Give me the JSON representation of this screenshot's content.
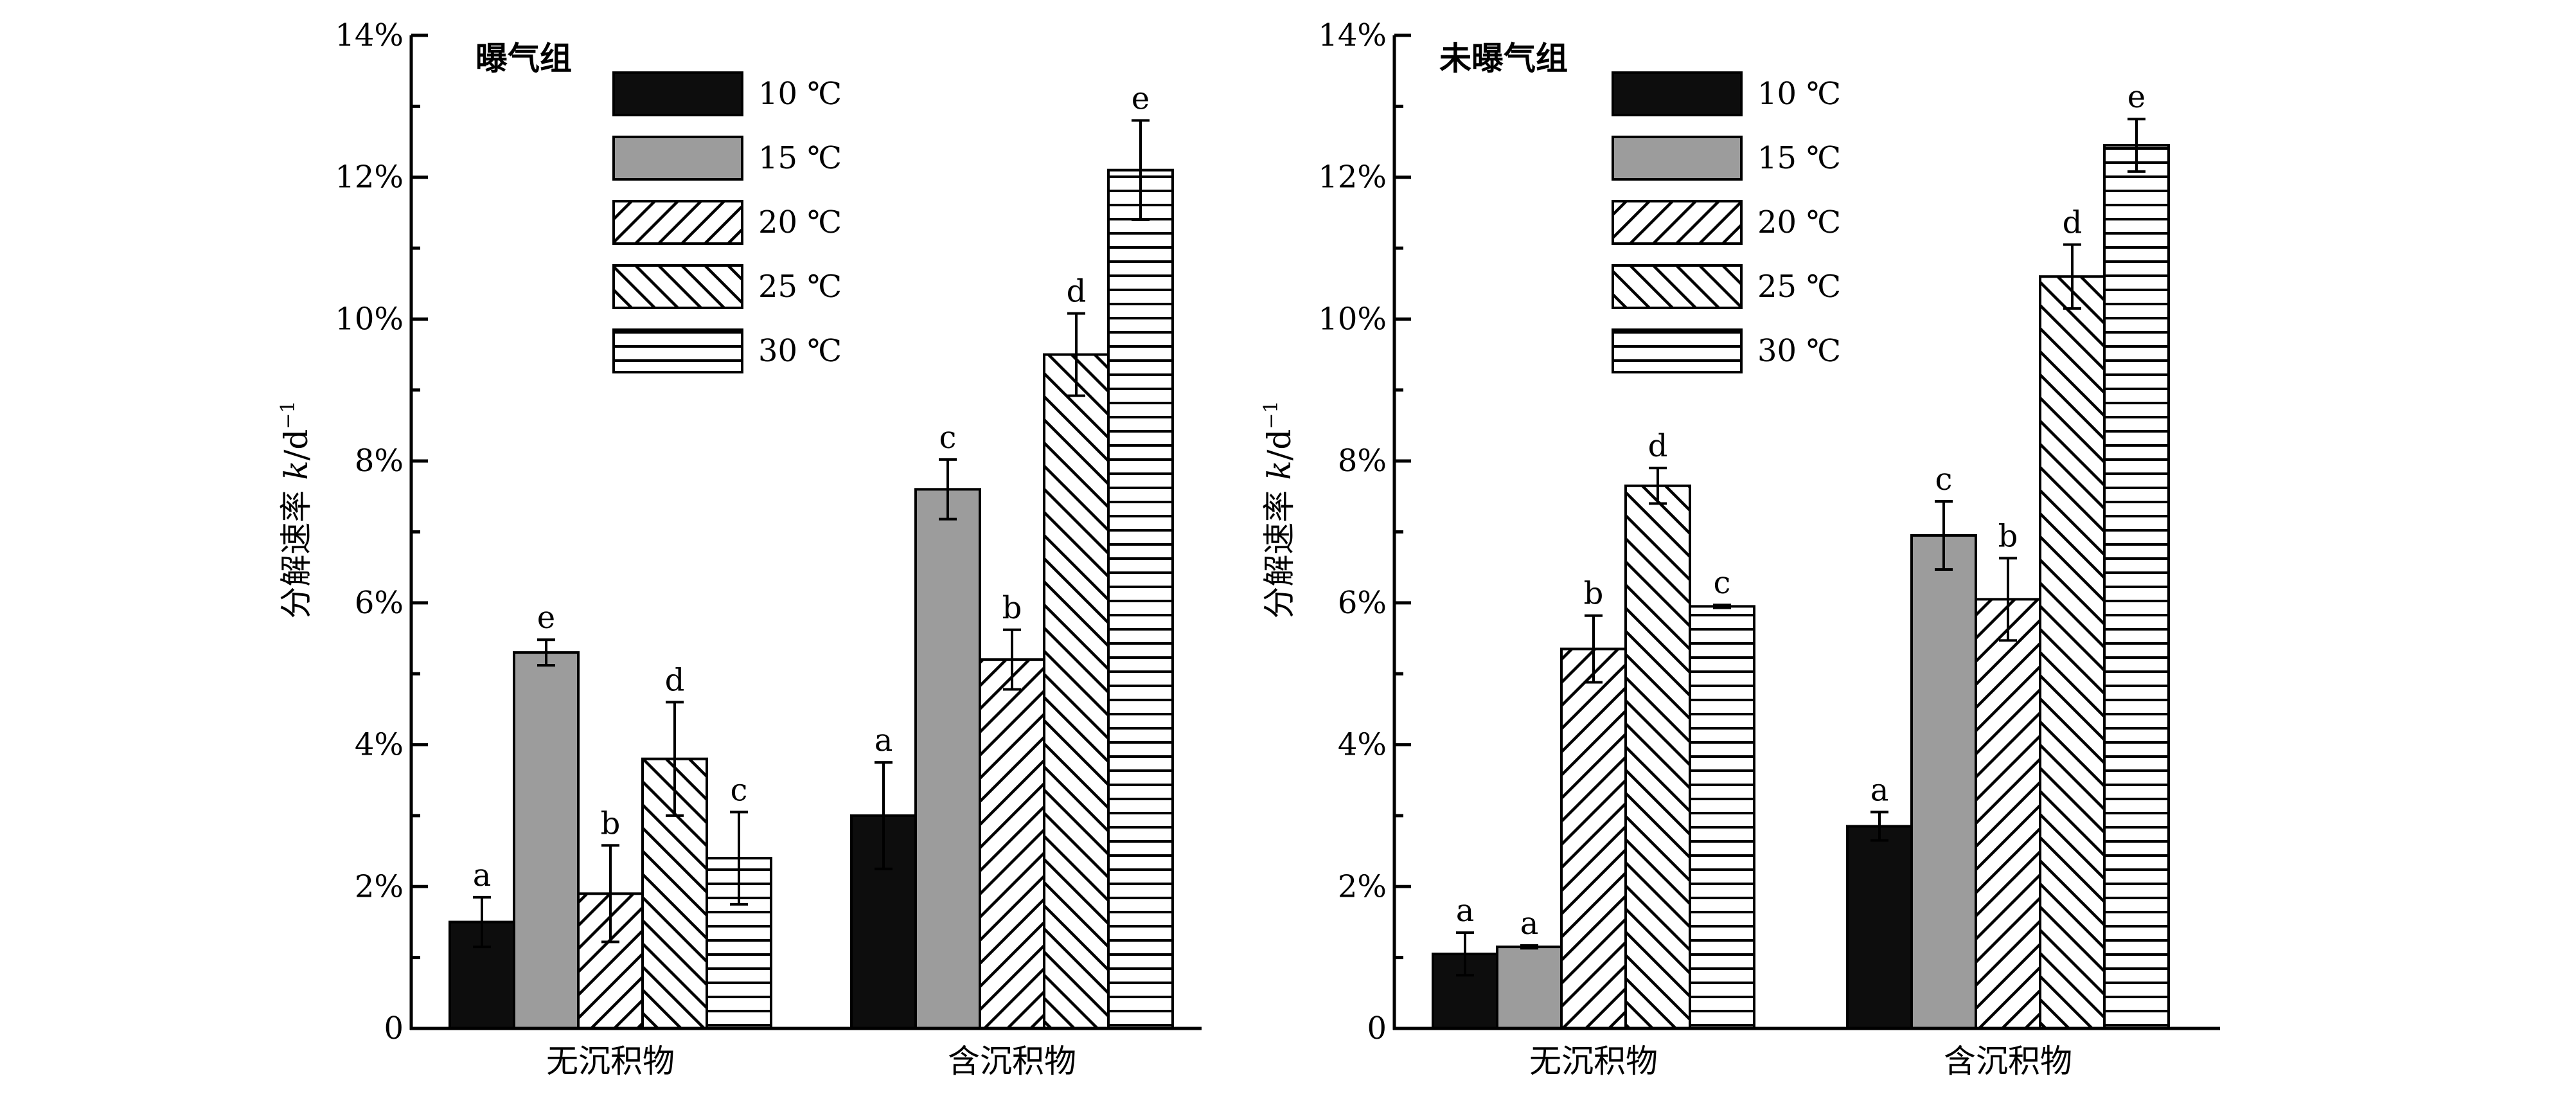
{
  "figure": {
    "ylabel_prefix": "分解速率 ",
    "ylabel_var": "k",
    "ylabel_unit": "/d",
    "ylabel_exp": "−1"
  },
  "chart_data": [
    {
      "type": "bar",
      "title": "曝气组",
      "categories": [
        "无沉积物",
        "含沉积物"
      ],
      "ylim": [
        0,
        14
      ],
      "yticks": [
        0,
        2,
        4,
        6,
        8,
        10,
        12,
        14
      ],
      "ytick_labels": [
        "0",
        "2%",
        "4%",
        "6%",
        "8%",
        "10%",
        "12%",
        "14%"
      ],
      "series": [
        {
          "name": "10 ℃",
          "pattern": "solid-black",
          "values": [
            1.5,
            3.0
          ],
          "errors": [
            0.35,
            0.75
          ],
          "letters": [
            "a",
            "a"
          ]
        },
        {
          "name": "15 ℃",
          "pattern": "solid-gray",
          "values": [
            5.3,
            7.6
          ],
          "errors": [
            0.18,
            0.42
          ],
          "letters": [
            "e",
            "c"
          ]
        },
        {
          "name": "20 ℃",
          "pattern": "hatch-up",
          "values": [
            1.9,
            5.2
          ],
          "errors": [
            0.68,
            0.42
          ],
          "letters": [
            "b",
            "b"
          ]
        },
        {
          "name": "25 ℃",
          "pattern": "hatch-down",
          "values": [
            3.8,
            9.5
          ],
          "errors": [
            0.8,
            0.58
          ],
          "letters": [
            "d",
            "d"
          ]
        },
        {
          "name": "30 ℃",
          "pattern": "horizontal",
          "values": [
            2.4,
            12.1
          ],
          "errors": [
            0.65,
            0.7
          ],
          "letters": [
            "c",
            "e"
          ]
        }
      ]
    },
    {
      "type": "bar",
      "title": "未曝气组",
      "categories": [
        "无沉积物",
        "含沉积物"
      ],
      "ylim": [
        0,
        14
      ],
      "yticks": [
        0,
        2,
        4,
        6,
        8,
        10,
        12,
        14
      ],
      "ytick_labels": [
        "0",
        "2%",
        "4%",
        "6%",
        "8%",
        "10%",
        "12%",
        "14%"
      ],
      "series": [
        {
          "name": "10 ℃",
          "pattern": "solid-black",
          "values": [
            1.05,
            2.85
          ],
          "errors": [
            0.3,
            0.2
          ],
          "letters": [
            "a",
            "a"
          ]
        },
        {
          "name": "15 ℃",
          "pattern": "solid-gray",
          "values": [
            1.15,
            6.95
          ],
          "errors": [
            0.02,
            0.48
          ],
          "letters": [
            "a",
            "c"
          ]
        },
        {
          "name": "20 ℃",
          "pattern": "hatch-up",
          "values": [
            5.35,
            6.05
          ],
          "errors": [
            0.47,
            0.58
          ],
          "letters": [
            "b",
            "b"
          ]
        },
        {
          "name": "25 ℃",
          "pattern": "hatch-down",
          "values": [
            7.65,
            10.6
          ],
          "errors": [
            0.25,
            0.45
          ],
          "letters": [
            "d",
            "d"
          ]
        },
        {
          "name": "30 ℃",
          "pattern": "horizontal",
          "values": [
            5.95,
            12.45
          ],
          "errors": [
            0.02,
            0.37
          ],
          "letters": [
            "c",
            "e"
          ]
        }
      ]
    }
  ]
}
